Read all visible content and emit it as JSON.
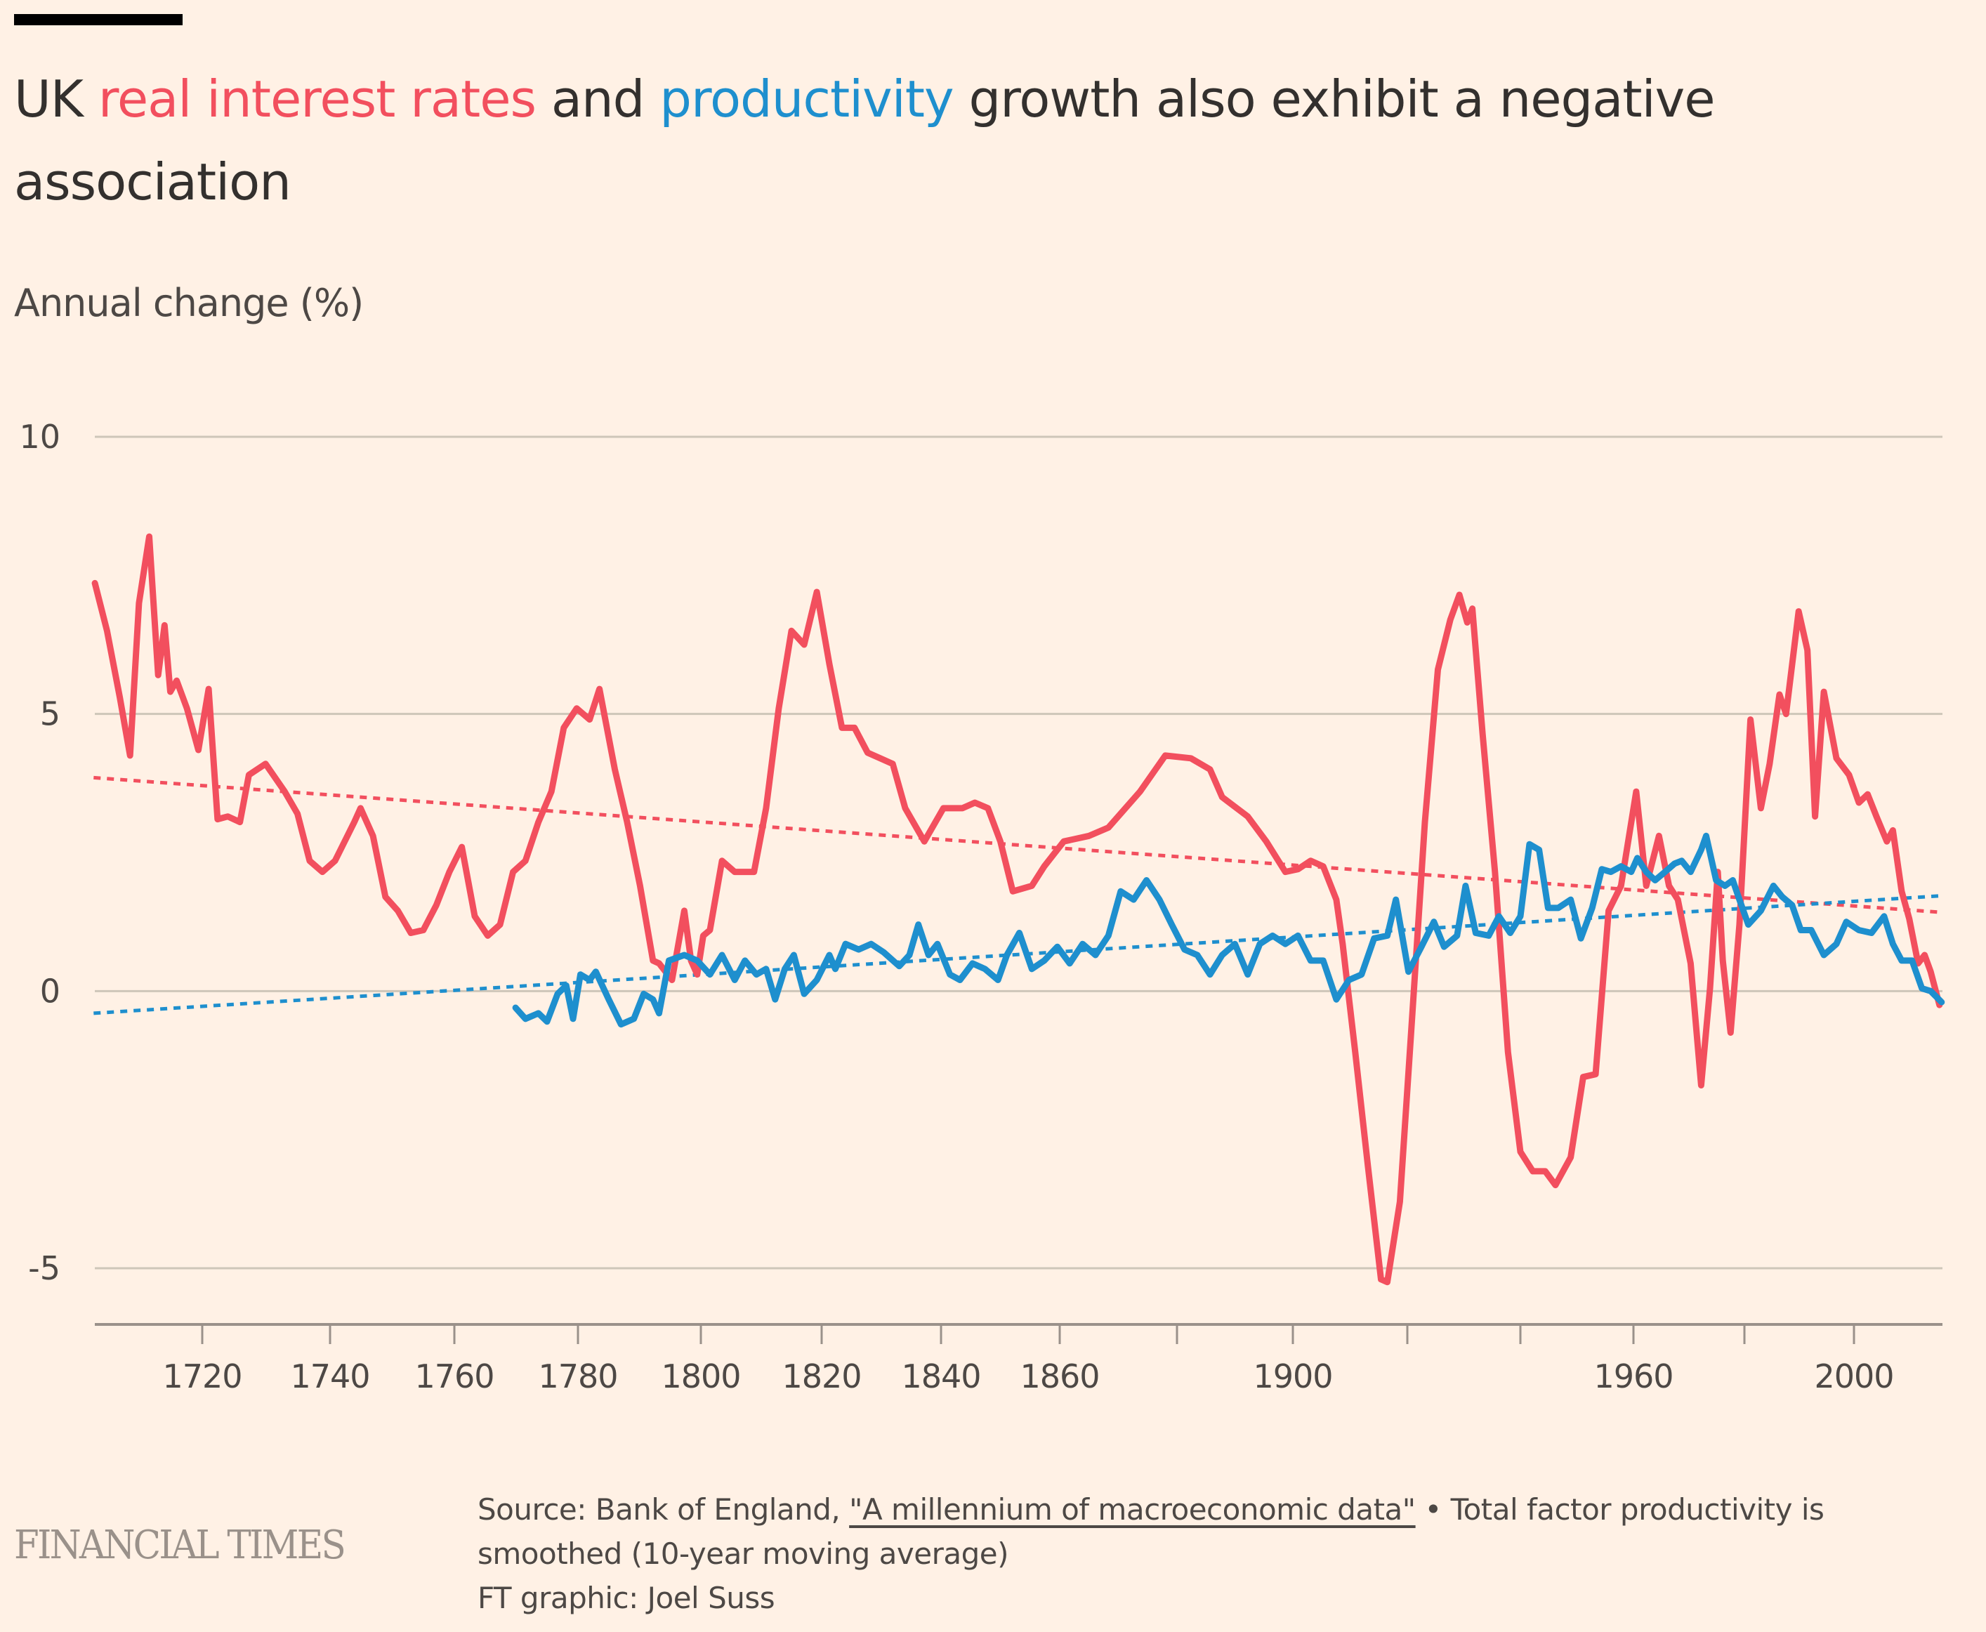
{
  "title": {
    "prefix": "UK ",
    "highlight_red": "real interest rates",
    "middle": " and ",
    "highlight_blue": "productivity",
    "suffix": " growth also exhibit a negative association"
  },
  "colors": {
    "background": "#FFF1E5",
    "real_interest_rates": "#F24F5E",
    "productivity": "#1E8FCE",
    "gridline": "#CEC6B9",
    "axis": "#9A918A"
  },
  "footer": {
    "source_prefix": "Source: Bank of England, ",
    "source_link": "\"A millennium of macroeconomic data\"",
    "source_suffix": " • Total factor productivity is smoothed (10-year moving average)",
    "credit": "FT graphic: Joel Suss"
  },
  "brand": "FINANCIAL TIMES",
  "chart_data": {
    "type": "line",
    "title": "UK real interest rates and productivity growth also exhibit a negative association",
    "ylabel": "Annual change (%)",
    "xlabel": "",
    "ylim": [
      -6,
      10
    ],
    "xlim": [
      1703,
      2016
    ],
    "yticks": [
      10,
      5,
      0,
      -5
    ],
    "xticks": [
      1720,
      1740,
      1760,
      1780,
      1800,
      1820,
      1840,
      1860,
      1880,
      1900,
      1920,
      1940,
      1960,
      1980,
      2000
    ],
    "xtick_labels": [
      "1720",
      "1740",
      "1760",
      "1780",
      "1800",
      "1820",
      "1840",
      "1860",
      "",
      "1900",
      "",
      "",
      "1960",
      "",
      "2000"
    ],
    "grid": true,
    "legend": "inline-title",
    "series": [
      {
        "name": "Real interest rates",
        "style": "solid",
        "points": [
          [
            1703.2,
            7.36
          ],
          [
            1705.1,
            6.5
          ],
          [
            1707.1,
            5.3
          ],
          [
            1708.7,
            4.25
          ],
          [
            1710.1,
            7.0
          ],
          [
            1711.7,
            8.2
          ],
          [
            1713.1,
            5.7
          ],
          [
            1714.1,
            6.6
          ],
          [
            1715,
            5.4
          ],
          [
            1716,
            5.6
          ],
          [
            1717.6,
            5.1
          ],
          [
            1719.4,
            4.35
          ],
          [
            1721,
            5.45
          ],
          [
            1722.4,
            3.1
          ],
          [
            1724,
            3.15
          ],
          [
            1725.9,
            3.05
          ],
          [
            1727.3,
            3.9
          ],
          [
            1729.9,
            4.1
          ],
          [
            1732.9,
            3.6
          ],
          [
            1734.9,
            3.2
          ],
          [
            1736.8,
            2.35
          ],
          [
            1738.8,
            2.15
          ],
          [
            1740.8,
            2.35
          ],
          [
            1743.9,
            3.05
          ],
          [
            1744.9,
            3.3
          ],
          [
            1746.9,
            2.8
          ],
          [
            1748.9,
            1.7
          ],
          [
            1750.9,
            1.45
          ],
          [
            1753,
            1.05
          ],
          [
            1755,
            1.1
          ],
          [
            1757.1,
            1.55
          ],
          [
            1759.2,
            2.15
          ],
          [
            1761.2,
            2.6
          ],
          [
            1763.3,
            1.35
          ],
          [
            1765.4,
            1.0
          ],
          [
            1767.4,
            1.2
          ],
          [
            1769.5,
            2.15
          ],
          [
            1771.5,
            2.35
          ],
          [
            1773.6,
            3.05
          ],
          [
            1775.7,
            3.6
          ],
          [
            1777.7,
            4.75
          ],
          [
            1779.8,
            5.1
          ],
          [
            1781.9,
            4.9
          ],
          [
            1783.5,
            5.45
          ],
          [
            1786,
            4.0
          ],
          [
            1788,
            3.05
          ],
          [
            1790.1,
            1.9
          ],
          [
            1792.2,
            0.55
          ],
          [
            1793.2,
            0.5
          ],
          [
            1795.3,
            0.2
          ],
          [
            1797.3,
            1.45
          ],
          [
            1798.4,
            0.55
          ],
          [
            1799.4,
            0.3
          ],
          [
            1800.4,
            1.0
          ],
          [
            1801.5,
            1.1
          ],
          [
            1803.5,
            2.35
          ],
          [
            1805.6,
            2.15
          ],
          [
            1808.8,
            2.15
          ],
          [
            1810.8,
            3.3
          ],
          [
            1812.9,
            5.1
          ],
          [
            1815,
            6.5
          ],
          [
            1817.1,
            6.25
          ],
          [
            1819.2,
            7.2
          ],
          [
            1821.3,
            5.9
          ],
          [
            1823.4,
            4.75
          ],
          [
            1825.5,
            4.75
          ],
          [
            1827.7,
            4.3
          ],
          [
            1829.8,
            4.2
          ],
          [
            1831.9,
            4.1
          ],
          [
            1834,
            3.3
          ],
          [
            1837.2,
            2.7
          ],
          [
            1840.4,
            3.3
          ],
          [
            1843.6,
            3.3
          ],
          [
            1845.7,
            3.4
          ],
          [
            1847.9,
            3.3
          ],
          [
            1850,
            2.7
          ],
          [
            1852.1,
            1.8
          ],
          [
            1855.3,
            1.9
          ],
          [
            1857.4,
            2.25
          ],
          [
            1860.7,
            2.7
          ],
          [
            1865,
            2.8
          ],
          [
            1868.3,
            2.95
          ],
          [
            1873.7,
            3.6
          ],
          [
            1878,
            4.25
          ],
          [
            1882.4,
            4.2
          ],
          [
            1885.7,
            4.0
          ],
          [
            1887.8,
            3.5
          ],
          [
            1892.2,
            3.15
          ],
          [
            1895.4,
            2.7
          ],
          [
            1898.7,
            2.15
          ],
          [
            1900.9,
            2.2
          ],
          [
            1903.1,
            2.35
          ],
          [
            1905.3,
            2.25
          ],
          [
            1907.6,
            1.65
          ],
          [
            1908.7,
            0.85
          ],
          [
            1910.9,
            -1.1
          ],
          [
            1913.1,
            -3.15
          ],
          [
            1915.4,
            -5.2
          ],
          [
            1916.5,
            -5.25
          ],
          [
            1918.7,
            -3.8
          ],
          [
            1920.9,
            -0.4
          ],
          [
            1923.1,
            3.05
          ],
          [
            1925.4,
            5.8
          ],
          [
            1927.6,
            6.7
          ],
          [
            1929.2,
            7.15
          ],
          [
            1930.6,
            6.65
          ],
          [
            1931.5,
            6.9
          ],
          [
            1933.3,
            4.65
          ],
          [
            1935.5,
            2.15
          ],
          [
            1937.8,
            -1.1
          ],
          [
            1940,
            -2.9
          ],
          [
            1942.2,
            -3.25
          ],
          [
            1944.4,
            -3.25
          ],
          [
            1946.2,
            -3.5
          ],
          [
            1948.9,
            -3.0
          ],
          [
            1951.1,
            -1.55
          ],
          [
            1953.3,
            -1.5
          ],
          [
            1955.6,
            1.45
          ],
          [
            1957.8,
            1.9
          ],
          [
            1960.5,
            3.6
          ],
          [
            1962.3,
            1.9
          ],
          [
            1964.6,
            2.8
          ],
          [
            1966.4,
            1.9
          ],
          [
            1968,
            1.65
          ],
          [
            1970.3,
            0.5
          ],
          [
            1972.2,
            -1.7
          ],
          [
            1973.8,
            0.05
          ],
          [
            1975.2,
            2.15
          ],
          [
            1976.1,
            0.55
          ],
          [
            1977.5,
            -0.75
          ],
          [
            1979.1,
            1.2
          ],
          [
            1981.1,
            4.9
          ],
          [
            1983,
            3.3
          ],
          [
            1984.6,
            4.1
          ],
          [
            1986.4,
            5.35
          ],
          [
            1987.6,
            5.0
          ],
          [
            1989.9,
            6.85
          ],
          [
            1991.5,
            6.15
          ],
          [
            1992.9,
            3.15
          ],
          [
            1994.5,
            5.4
          ],
          [
            1996.8,
            4.2
          ],
          [
            1999.1,
            3.9
          ],
          [
            2000.9,
            3.4
          ],
          [
            2002.5,
            3.55
          ],
          [
            2004.1,
            3.15
          ],
          [
            2006,
            2.7
          ],
          [
            2007.1,
            2.9
          ],
          [
            2008.7,
            1.8
          ],
          [
            2010.1,
            1.3
          ],
          [
            2011.7,
            0.5
          ],
          [
            2012.9,
            0.65
          ],
          [
            2014,
            0.35
          ],
          [
            2015.6,
            -0.25
          ]
        ]
      },
      {
        "name": "Productivity (TFP, 10-year moving average)",
        "style": "solid",
        "points": [
          [
            1769.9,
            -0.3
          ],
          [
            1771.5,
            -0.5
          ],
          [
            1773.6,
            -0.4
          ],
          [
            1775,
            -0.55
          ],
          [
            1776.7,
            -0.05
          ],
          [
            1778.1,
            0.1
          ],
          [
            1779.2,
            -0.5
          ],
          [
            1780.4,
            0.3
          ],
          [
            1781.9,
            0.2
          ],
          [
            1782.9,
            0.35
          ],
          [
            1785,
            -0.15
          ],
          [
            1787,
            -0.6
          ],
          [
            1789.1,
            -0.5
          ],
          [
            1790.7,
            -0.05
          ],
          [
            1792.2,
            -0.15
          ],
          [
            1793.2,
            -0.4
          ],
          [
            1794.8,
            0.55
          ],
          [
            1797.3,
            0.65
          ],
          [
            1799.4,
            0.55
          ],
          [
            1801.5,
            0.3
          ],
          [
            1803.5,
            0.65
          ],
          [
            1805.6,
            0.2
          ],
          [
            1807.3,
            0.55
          ],
          [
            1809.2,
            0.3
          ],
          [
            1810.8,
            0.4
          ],
          [
            1812.3,
            -0.15
          ],
          [
            1813.9,
            0.4
          ],
          [
            1815.4,
            0.65
          ],
          [
            1817.1,
            -0.05
          ],
          [
            1819.2,
            0.2
          ],
          [
            1821.3,
            0.65
          ],
          [
            1822.3,
            0.4
          ],
          [
            1824,
            0.85
          ],
          [
            1826.2,
            0.75
          ],
          [
            1828.3,
            0.85
          ],
          [
            1830.4,
            0.7
          ],
          [
            1833,
            0.45
          ],
          [
            1834.7,
            0.65
          ],
          [
            1836.2,
            1.2
          ],
          [
            1837.9,
            0.65
          ],
          [
            1839.4,
            0.85
          ],
          [
            1841.5,
            0.3
          ],
          [
            1843.2,
            0.2
          ],
          [
            1845.3,
            0.5
          ],
          [
            1847.4,
            0.4
          ],
          [
            1849.6,
            0.2
          ],
          [
            1851.1,
            0.65
          ],
          [
            1853.2,
            1.05
          ],
          [
            1855.3,
            0.4
          ],
          [
            1857.4,
            0.55
          ],
          [
            1859.6,
            0.8
          ],
          [
            1861.7,
            0.5
          ],
          [
            1863.9,
            0.85
          ],
          [
            1866.1,
            0.65
          ],
          [
            1868.3,
            1.0
          ],
          [
            1870.4,
            1.8
          ],
          [
            1872.6,
            1.65
          ],
          [
            1874.8,
            2.0
          ],
          [
            1877,
            1.65
          ],
          [
            1879.1,
            1.2
          ],
          [
            1881.3,
            0.75
          ],
          [
            1883.5,
            0.65
          ],
          [
            1885.7,
            0.3
          ],
          [
            1887.8,
            0.65
          ],
          [
            1890,
            0.85
          ],
          [
            1892.2,
            0.3
          ],
          [
            1894.3,
            0.85
          ],
          [
            1896.5,
            1.0
          ],
          [
            1898.7,
            0.85
          ],
          [
            1900.9,
            1.0
          ],
          [
            1903.1,
            0.55
          ],
          [
            1905.3,
            0.55
          ],
          [
            1907.6,
            -0.15
          ],
          [
            1909.8,
            0.2
          ],
          [
            1912,
            0.3
          ],
          [
            1914.2,
            0.95
          ],
          [
            1916.5,
            1.0
          ],
          [
            1918,
            1.65
          ],
          [
            1920.2,
            0.35
          ],
          [
            1922.5,
            0.8
          ],
          [
            1924.7,
            1.25
          ],
          [
            1926.5,
            0.8
          ],
          [
            1928.8,
            1.0
          ],
          [
            1930.3,
            1.9
          ],
          [
            1932.1,
            1.05
          ],
          [
            1934.4,
            1.0
          ],
          [
            1936.2,
            1.35
          ],
          [
            1938.2,
            1.05
          ],
          [
            1940,
            1.35
          ],
          [
            1941.6,
            2.65
          ],
          [
            1943.3,
            2.55
          ],
          [
            1944.9,
            1.5
          ],
          [
            1946.7,
            1.5
          ],
          [
            1948.9,
            1.65
          ],
          [
            1950.7,
            0.95
          ],
          [
            1952.7,
            1.5
          ],
          [
            1954.4,
            2.2
          ],
          [
            1956,
            2.15
          ],
          [
            1957.8,
            2.25
          ],
          [
            1959.6,
            2.15
          ],
          [
            1960.7,
            2.4
          ],
          [
            1962.3,
            2.15
          ],
          [
            1963.9,
            2.0
          ],
          [
            1965.7,
            2.15
          ],
          [
            1967.4,
            2.3
          ],
          [
            1968.7,
            2.35
          ],
          [
            1970.3,
            2.15
          ],
          [
            1972.2,
            2.55
          ],
          [
            1973.1,
            2.8
          ],
          [
            1974.9,
            2.0
          ],
          [
            1976.5,
            1.9
          ],
          [
            1977.9,
            2.0
          ],
          [
            1979.1,
            1.65
          ],
          [
            1980.7,
            1.2
          ],
          [
            1983,
            1.45
          ],
          [
            1985.3,
            1.9
          ],
          [
            1986.9,
            1.7
          ],
          [
            1988.7,
            1.55
          ],
          [
            1990.3,
            1.1
          ],
          [
            1992.2,
            1.1
          ],
          [
            1994.5,
            0.65
          ],
          [
            1996.8,
            0.85
          ],
          [
            1998.6,
            1.25
          ],
          [
            2000.9,
            1.1
          ],
          [
            2003.2,
            1.05
          ],
          [
            2005.5,
            1.35
          ],
          [
            2007.1,
            0.85
          ],
          [
            2008.7,
            0.55
          ],
          [
            2010.6,
            0.55
          ],
          [
            2012.4,
            0.05
          ],
          [
            2014,
            0.0
          ],
          [
            2016,
            -0.2
          ]
        ]
      },
      {
        "name": "Real interest rates trend",
        "style": "dotted",
        "points": [
          [
            1703,
            3.85
          ],
          [
            2016,
            1.42
          ]
        ]
      },
      {
        "name": "Productivity trend",
        "style": "dotted",
        "points": [
          [
            1703,
            -0.4
          ],
          [
            2016,
            1.72
          ]
        ]
      }
    ]
  }
}
